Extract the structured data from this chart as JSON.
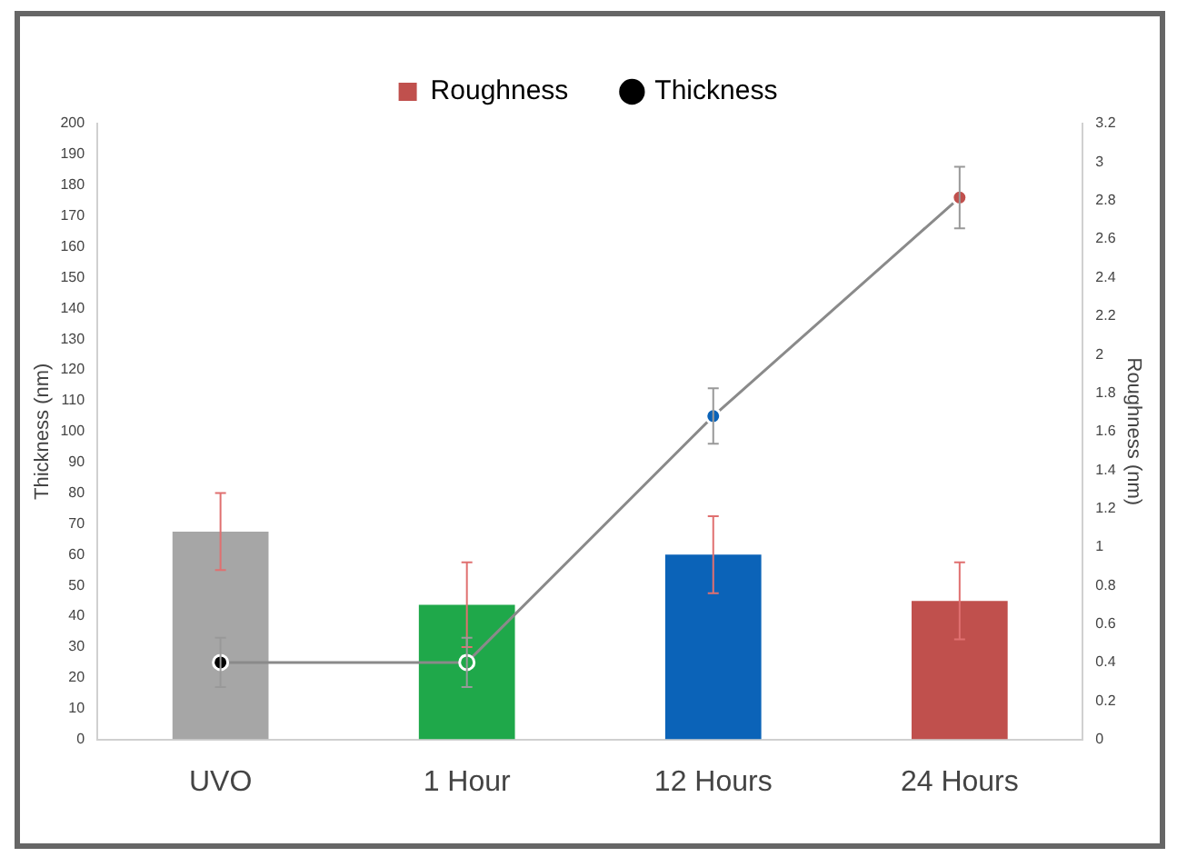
{
  "chart_data": {
    "type": "bar",
    "categories": [
      "UVO",
      "1 Hour",
      "12 Hours",
      "24 Hours"
    ],
    "ylabel": "Thickness (nm)",
    "y2label": "Roughness (nm)",
    "ylim": [
      0,
      200
    ],
    "yticks": [
      0,
      10,
      20,
      30,
      40,
      50,
      60,
      70,
      80,
      90,
      100,
      110,
      120,
      130,
      140,
      150,
      160,
      170,
      180,
      190,
      200
    ],
    "y2lim": [
      0,
      3.2
    ],
    "y2ticks": [
      0,
      0.2,
      0.4,
      0.6,
      0.8,
      1,
      1.2,
      1.4,
      1.6,
      1.8,
      2,
      2.2,
      2.4,
      2.6,
      2.8,
      3,
      3.2
    ],
    "legend": "top",
    "grid": false,
    "marker": "circle",
    "series": [
      {
        "name": "Roughness",
        "axis": "y2",
        "color": "#c0504d",
        "colors": [
          "#a6a6a6",
          "#1fa84a",
          "#0b63b8",
          "#c0504d"
        ],
        "values": [
          1.08,
          0.7,
          0.96,
          0.72
        ],
        "errors": [
          0.2,
          0.22,
          0.2,
          0.2
        ]
      },
      {
        "name": "Thickness",
        "type": "line",
        "color": "#8a8a8a",
        "colors": [
          "#000000",
          "#1fa84a",
          "#0b63b8",
          "#c0504d"
        ],
        "values": [
          25,
          25,
          105,
          176
        ],
        "errors": [
          8,
          8,
          9,
          10
        ]
      }
    ]
  }
}
